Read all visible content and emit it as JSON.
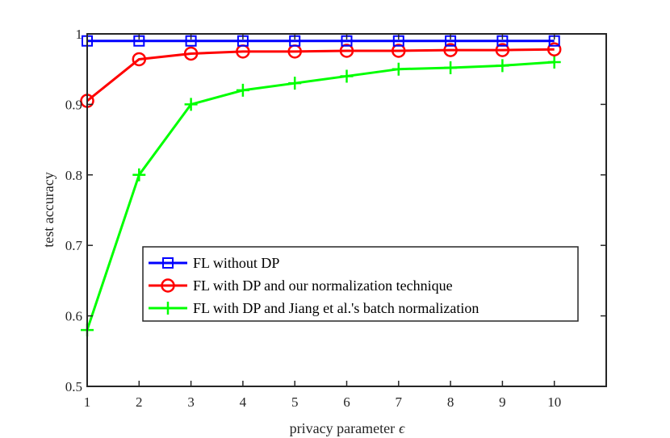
{
  "chart_data": {
    "type": "line",
    "title": "",
    "xlabel": "privacy parameter",
    "xlabel_symbol": "ϵ",
    "ylabel": "test accuracy",
    "xlim": [
      1,
      11
    ],
    "ylim": [
      0.5,
      1.0
    ],
    "xticks": [
      1,
      2,
      3,
      4,
      5,
      6,
      7,
      8,
      9,
      10
    ],
    "yticks": [
      0.5,
      0.6,
      0.7,
      0.8,
      0.9,
      1.0
    ],
    "ytick_labels": [
      "0.5",
      "0.6",
      "0.7",
      "0.8",
      "0.9",
      "1"
    ],
    "x": [
      1,
      2,
      3,
      4,
      5,
      6,
      7,
      8,
      9,
      10
    ],
    "grid": false,
    "legend_position": "center-bottom",
    "series": [
      {
        "name": "FL without DP",
        "color": "#0000ff",
        "marker": "square",
        "values": [
          0.99,
          0.99,
          0.99,
          0.99,
          0.99,
          0.99,
          0.99,
          0.99,
          0.99,
          0.99
        ]
      },
      {
        "name": "FL with DP and our normalization technique",
        "color": "#ff0000",
        "marker": "circle",
        "values": [
          0.905,
          0.964,
          0.972,
          0.975,
          0.975,
          0.976,
          0.976,
          0.977,
          0.977,
          0.978
        ]
      },
      {
        "name": "FL with DP and Jiang et al.'s batch normalization",
        "color": "#00ff00",
        "marker": "plus",
        "values": [
          0.58,
          0.8,
          0.9,
          0.92,
          0.93,
          0.94,
          0.95,
          0.952,
          0.955,
          0.96
        ]
      }
    ]
  }
}
